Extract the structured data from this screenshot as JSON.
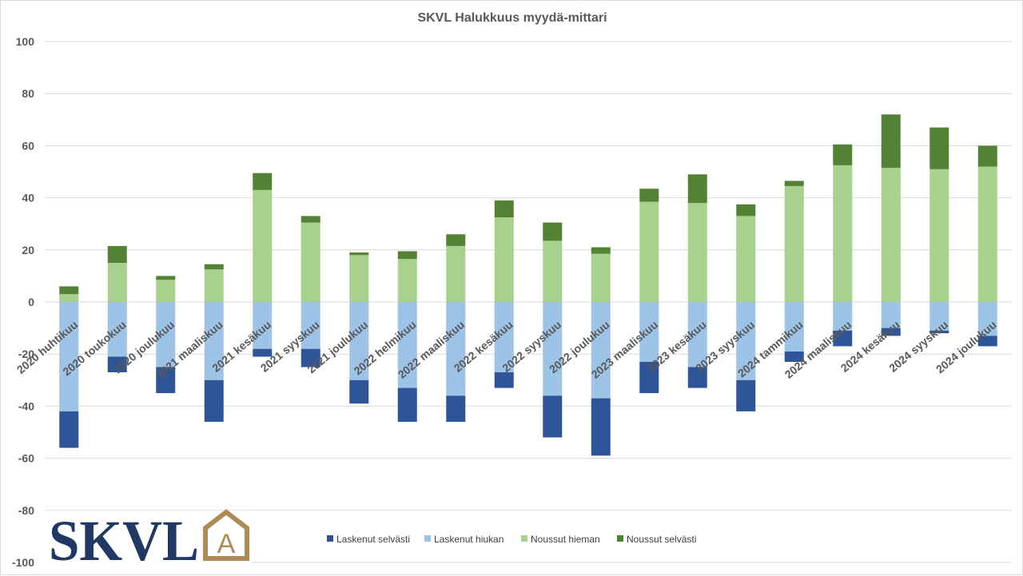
{
  "chart_data": {
    "type": "bar",
    "stacked": true,
    "title": "SKVL Halukkuus myydä-mittari",
    "xlabel": "",
    "ylabel": "",
    "ylim": [
      -100,
      100
    ],
    "yticks": [
      100,
      80,
      60,
      40,
      20,
      0,
      -20,
      -40,
      -60,
      -80,
      -100
    ],
    "grid": true,
    "legend_position": "bottom",
    "categories": [
      "2020 huhtikuu",
      "2020 toukokuu",
      "2020 joulukuu",
      "2021 maaliskuu",
      "2021 kesäkuu",
      "2021 syyskuu",
      "2021 joulukuu",
      "2022 helmikuu",
      "2022 maaliskuu",
      "2022 kesäkuu",
      "2022 syyskuu",
      "2022 joulukuu",
      "2023 maaliskuu",
      "2023 kesäkuu",
      "2023 syyskuu",
      "2024 tammikuu",
      "2024 maaliskuu",
      "2024 kesäkuu",
      "2024 syyskuu",
      "2024 joulukuu"
    ],
    "series": [
      {
        "name": "Laskenut selvästi",
        "color": "#2e5597",
        "values": [
          -14,
          -6,
          -10,
          -16,
          -3,
          -7,
          -9,
          -13,
          -10,
          -6,
          -16,
          -22,
          -12,
          -8,
          -12,
          -4,
          -6,
          -3,
          -1,
          -4
        ]
      },
      {
        "name": "Laskenut hiukan",
        "color": "#9dc3e6",
        "values": [
          -42,
          -21,
          -25,
          -30,
          -18,
          -18,
          -30,
          -33,
          -36,
          -27,
          -36,
          -37,
          -23,
          -25,
          -30,
          -19,
          -11,
          -10,
          -11,
          -13
        ]
      },
      {
        "name": "Noussut hieman",
        "color": "#a9d18e",
        "values": [
          3,
          15,
          8.5,
          12.5,
          43,
          30.5,
          18,
          16.5,
          21.5,
          32.5,
          23.5,
          18.5,
          38.5,
          38,
          33,
          44.5,
          52.5,
          51.5,
          51,
          52
        ]
      },
      {
        "name": "Noussut selvästi",
        "color": "#548235",
        "values": [
          3,
          6.5,
          1.5,
          2,
          6.5,
          2.5,
          1,
          3,
          4.5,
          6.5,
          7,
          2.5,
          5,
          11,
          4.5,
          2,
          8,
          20.5,
          16,
          8
        ]
      }
    ]
  },
  "logo": {
    "text": "SKVL",
    "mark": "A",
    "text_color": "#1f3864",
    "mark_color": "#b08a55"
  }
}
